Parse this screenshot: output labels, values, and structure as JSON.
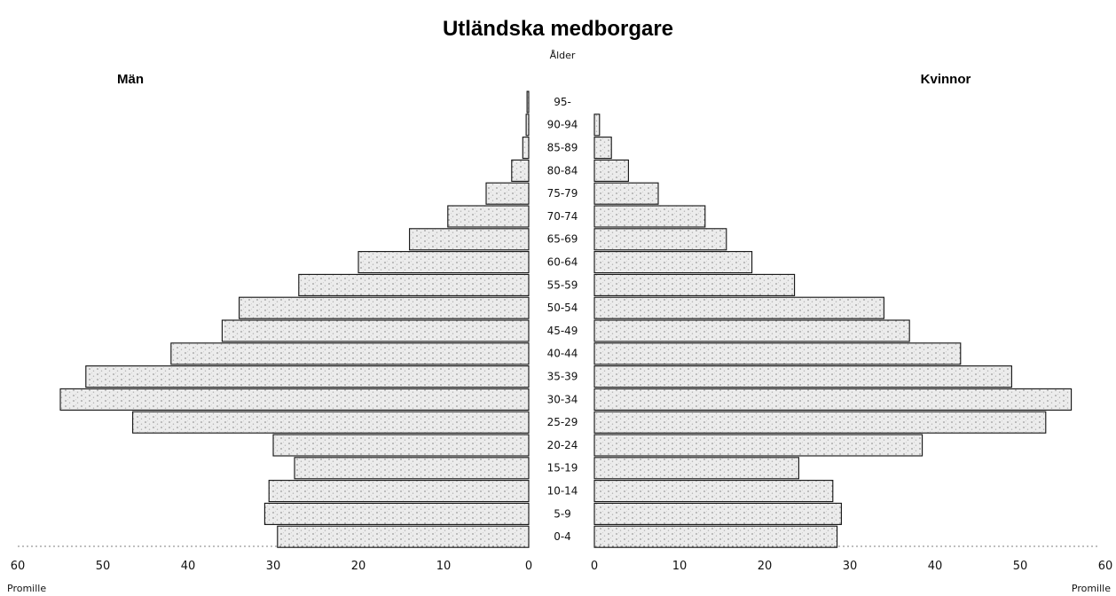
{
  "chart_data": {
    "type": "bar",
    "title": "Utländska medborgare",
    "age_axis_label": "Ålder",
    "xlabel_left": "Promille",
    "xlabel_right": "Promille",
    "categories": [
      "95-",
      "90-94",
      "85-89",
      "80-84",
      "75-79",
      "70-74",
      "65-69",
      "60-64",
      "55-59",
      "50-54",
      "45-49",
      "40-44",
      "35-39",
      "30-34",
      "25-29",
      "20-24",
      "15-19",
      "10-14",
      "5-9",
      "0-4"
    ],
    "series": [
      {
        "name": "Män",
        "side": "left",
        "values": [
          0.2,
          0.3,
          0.7,
          2.0,
          5.0,
          9.5,
          14.0,
          20.0,
          27.0,
          34.0,
          36.0,
          42.0,
          52.0,
          55.0,
          46.5,
          30.0,
          27.5,
          30.5,
          31.0,
          29.5
        ]
      },
      {
        "name": "Kvinnor",
        "side": "right",
        "values": [
          0.0,
          0.6,
          2.0,
          4.0,
          7.5,
          13.0,
          15.5,
          18.5,
          23.5,
          34.0,
          37.0,
          43.0,
          49.0,
          56.0,
          53.0,
          38.5,
          24.0,
          28.0,
          29.0,
          28.5
        ]
      }
    ],
    "ticks": [
      0,
      10,
      20,
      30,
      40,
      50,
      60
    ],
    "xlim": [
      0,
      60
    ],
    "grid": false,
    "colors": {
      "bar_fill": "#e6e6e6",
      "bar_edge": "#111111"
    }
  }
}
